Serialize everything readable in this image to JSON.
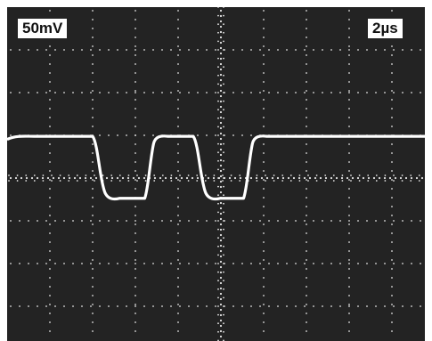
{
  "scope": {
    "volts_per_div": "50mV",
    "time_per_div": "2µs"
  },
  "colors": {
    "screen": "#232323",
    "trace": "#ffffff",
    "graticule": "#e6e6e6"
  },
  "chart_data": {
    "type": "line",
    "waveform": "square",
    "levels_div": {
      "high": 1.32,
      "low": -0.73
    },
    "period_div": 2.27,
    "x_units": "div",
    "y_units": "div"
  }
}
